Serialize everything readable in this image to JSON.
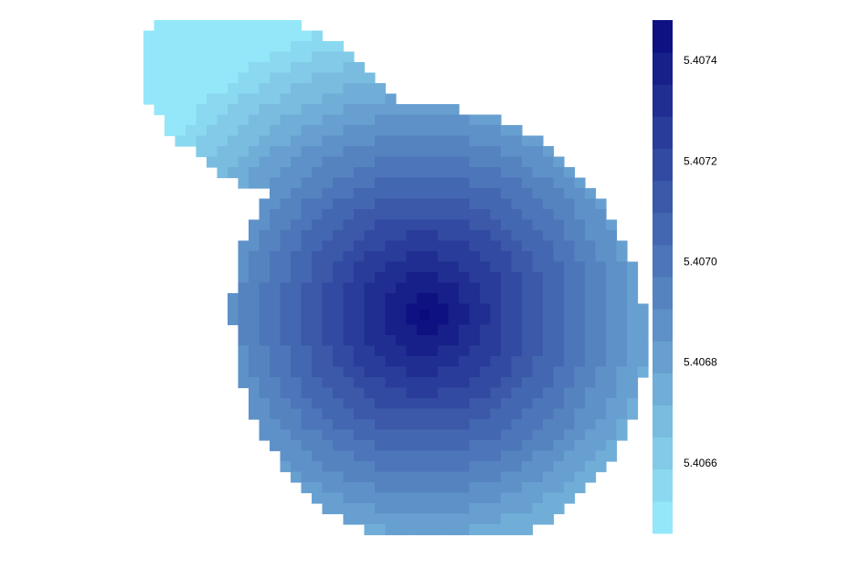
{
  "chart_data": {
    "type": "heatmap",
    "title": "",
    "xlabel": "",
    "ylabel": "",
    "grid": false,
    "legend": "right",
    "description_of_field": "raster map with a single peak; values increase toward the interior",
    "colorbar": {
      "min": 5.40646,
      "max": 5.40748,
      "ticks": [
        5.4066,
        5.4068,
        5.407,
        5.4072,
        5.4074
      ],
      "tick_labels": [
        "5.4066",
        "5.4068",
        "5.4070",
        "5.4072",
        "5.4074"
      ],
      "color_stops": [
        "#98eefc",
        "#0a0a7d"
      ],
      "n_bins": 16
    },
    "peak_value": 5.40748,
    "min_value": 5.40646
  }
}
